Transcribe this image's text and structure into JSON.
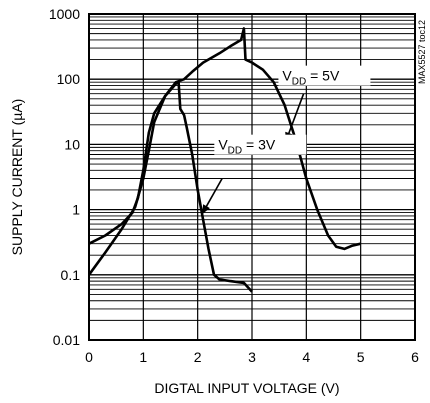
{
  "side_label": "MAX5527 toc12",
  "chart_data": {
    "type": "line",
    "xlabel": "DIGTAL INPUT VOLTAGE (V)",
    "ylabel": "SUPPLY CURRENT (µA)",
    "xlim": [
      0,
      6
    ],
    "ylim": [
      0.01,
      1000
    ],
    "yscale": "log",
    "grid": true,
    "x_ticks": [
      "0",
      "1",
      "2",
      "3",
      "4",
      "5",
      "6"
    ],
    "y_ticks": [
      "0.01",
      "0.1",
      "1",
      "10",
      "100",
      "1000"
    ],
    "series": [
      {
        "name": "VDD = 5V",
        "label_main": "V",
        "label_sub": "DD",
        "label_rest": " = 5V",
        "points": [
          [
            0,
            0.1
          ],
          [
            0.3,
            0.22
          ],
          [
            0.6,
            0.5
          ],
          [
            0.85,
            1.1
          ],
          [
            1.0,
            3
          ],
          [
            1.1,
            8
          ],
          [
            1.2,
            22
          ],
          [
            1.4,
            55
          ],
          [
            1.6,
            90
          ],
          [
            1.75,
            100
          ],
          [
            1.9,
            130
          ],
          [
            2.1,
            180
          ],
          [
            2.4,
            250
          ],
          [
            2.6,
            320
          ],
          [
            2.8,
            400
          ],
          [
            2.85,
            600
          ],
          [
            2.88,
            200
          ],
          [
            3.0,
            180
          ],
          [
            3.2,
            140
          ],
          [
            3.4,
            90
          ],
          [
            3.6,
            40
          ],
          [
            3.8,
            12
          ],
          [
            4.0,
            3
          ],
          [
            4.2,
            1
          ],
          [
            4.4,
            0.4
          ],
          [
            4.55,
            0.27
          ],
          [
            4.7,
            0.25
          ],
          [
            4.85,
            0.28
          ],
          [
            5.0,
            0.3
          ]
        ]
      },
      {
        "name": "VDD = 3V",
        "label_main": "V",
        "label_sub": "DD",
        "label_rest": " = 3V",
        "points": [
          [
            0,
            0.3
          ],
          [
            0.3,
            0.4
          ],
          [
            0.6,
            0.6
          ],
          [
            0.8,
            0.9
          ],
          [
            0.9,
            1.5
          ],
          [
            1.0,
            4
          ],
          [
            1.1,
            15
          ],
          [
            1.2,
            30
          ],
          [
            1.4,
            55
          ],
          [
            1.6,
            85
          ],
          [
            1.65,
            90
          ],
          [
            1.68,
            35
          ],
          [
            1.75,
            28
          ],
          [
            1.8,
            18
          ],
          [
            1.9,
            7
          ],
          [
            2.0,
            2
          ],
          [
            2.1,
            0.7
          ],
          [
            2.2,
            0.25
          ],
          [
            2.3,
            0.1
          ],
          [
            2.4,
            0.085
          ],
          [
            2.6,
            0.08
          ],
          [
            2.85,
            0.075
          ],
          [
            3.0,
            0.055
          ]
        ]
      }
    ]
  }
}
